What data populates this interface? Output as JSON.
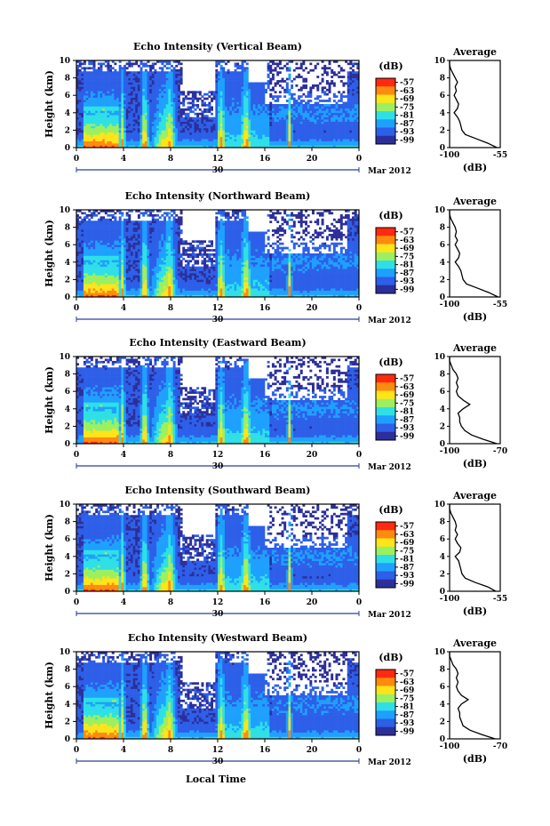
{
  "x_axis_label": "Local Time",
  "chart_data": [
    {
      "type": "heatmap",
      "title": "Echo Intensity (Vertical Beam)",
      "ylabel": "Height (km)",
      "x_ticks": [
        "0",
        "4",
        "8",
        "12",
        "16",
        "20",
        "0"
      ],
      "date_day": "30",
      "date_month": "Mar 2012",
      "colorbar_unit": "(dB)",
      "colorbar_ticks": [
        "-57",
        "-63",
        "-69",
        "-75",
        "-81",
        "-87",
        "-93",
        "-99"
      ],
      "profile": {
        "title": "Average",
        "xlabel": "(dB)",
        "x_ticks": [
          "-100",
          "-55"
        ],
        "xlim": [
          -100,
          -55
        ],
        "y_ticks": [
          "0",
          "2",
          "4",
          "6",
          "8",
          "10"
        ],
        "ylim": [
          0,
          10
        ],
        "height_km": [
          0,
          0.5,
          1,
          1.5,
          2,
          2.5,
          3,
          3.5,
          4,
          4.5,
          5,
          5.5,
          6,
          6.5,
          7,
          7.5,
          8,
          8.5,
          9,
          9.5,
          10
        ],
        "values_db": [
          -58,
          -66,
          -76,
          -86,
          -89,
          -90,
          -91,
          -93,
          -96,
          -93,
          -92,
          -94,
          -96,
          -94,
          -95,
          -93,
          -95,
          -97,
          -99,
          -100,
          -100
        ]
      }
    },
    {
      "type": "heatmap",
      "title": "Echo Intensity (Northward Beam)",
      "ylabel": "Height (km)",
      "x_ticks": [
        "0",
        "4",
        "8",
        "12",
        "16",
        "20",
        "0"
      ],
      "date_day": "30",
      "date_month": "Mar 2012",
      "colorbar_unit": "(dB)",
      "colorbar_ticks": [
        "-57",
        "-63",
        "-69",
        "-75",
        "-81",
        "-87",
        "-93",
        "-99"
      ],
      "profile": {
        "title": "Average",
        "xlabel": "(dB)",
        "x_ticks": [
          "-100",
          "-55"
        ],
        "xlim": [
          -100,
          -55
        ],
        "y_ticks": [
          "0",
          "2",
          "4",
          "6",
          "8",
          "10"
        ],
        "ylim": [
          0,
          10
        ],
        "height_km": [
          0,
          0.5,
          1,
          1.5,
          2,
          2.5,
          3,
          3.5,
          4,
          4.5,
          5,
          5.5,
          6,
          6.5,
          7,
          7.5,
          8,
          8.5,
          9,
          9.5,
          10
        ],
        "values_db": [
          -57,
          -65,
          -75,
          -85,
          -88,
          -89,
          -90,
          -92,
          -95,
          -92,
          -91,
          -93,
          -95,
          -93,
          -95,
          -94,
          -95,
          -97,
          -99,
          -100,
          -100
        ]
      }
    },
    {
      "type": "heatmap",
      "title": "Echo Intensity (Eastward Beam)",
      "ylabel": "Height (km)",
      "x_ticks": [
        "0",
        "4",
        "8",
        "12",
        "16",
        "20",
        "0"
      ],
      "date_day": "30",
      "date_month": "Mar 2012",
      "colorbar_unit": "(dB)",
      "colorbar_ticks": [
        "-57",
        "-63",
        "-69",
        "-75",
        "-81",
        "-87",
        "-93",
        "-99"
      ],
      "profile": {
        "title": "Average",
        "xlabel": "(dB)",
        "x_ticks": [
          "-100",
          "-70"
        ],
        "xlim": [
          -100,
          -70
        ],
        "y_ticks": [
          "0",
          "2",
          "4",
          "6",
          "8",
          "10"
        ],
        "ylim": [
          0,
          10
        ],
        "height_km": [
          0,
          0.5,
          1,
          1.5,
          2,
          2.5,
          3,
          3.5,
          4,
          4.5,
          5,
          5.5,
          6,
          6.5,
          7,
          7.5,
          8,
          8.5,
          9,
          9.5,
          10
        ],
        "values_db": [
          -72,
          -80,
          -87,
          -91,
          -93,
          -94,
          -94,
          -95,
          -92,
          -88,
          -92,
          -95,
          -96,
          -95,
          -96,
          -95,
          -96,
          -98,
          -99,
          -100,
          -100
        ]
      }
    },
    {
      "type": "heatmap",
      "title": "Echo Intensity (Southward Beam)",
      "ylabel": "Height (km)",
      "x_ticks": [
        "0",
        "4",
        "8",
        "12",
        "16",
        "20",
        "0"
      ],
      "date_day": "30",
      "date_month": "Mar 2012",
      "colorbar_unit": "(dB)",
      "colorbar_ticks": [
        "-57",
        "-63",
        "-69",
        "-75",
        "-81",
        "-87",
        "-93",
        "-99"
      ],
      "profile": {
        "title": "Average",
        "xlabel": "(dB)",
        "x_ticks": [
          "-100",
          "-55"
        ],
        "xlim": [
          -100,
          -55
        ],
        "y_ticks": [
          "0",
          "2",
          "4",
          "6",
          "8",
          "10"
        ],
        "ylim": [
          0,
          10
        ],
        "height_km": [
          0,
          0.5,
          1,
          1.5,
          2,
          2.5,
          3,
          3.5,
          4,
          4.5,
          5,
          5.5,
          6,
          6.5,
          7,
          7.5,
          8,
          8.5,
          9,
          9.5,
          10
        ],
        "values_db": [
          -59,
          -66,
          -77,
          -86,
          -89,
          -90,
          -91,
          -92,
          -95,
          -91,
          -90,
          -93,
          -95,
          -93,
          -95,
          -94,
          -95,
          -97,
          -99,
          -100,
          -100
        ]
      }
    },
    {
      "type": "heatmap",
      "title": "Echo Intensity (Westward Beam)",
      "ylabel": "Height (km)",
      "x_ticks": [
        "0",
        "4",
        "8",
        "12",
        "16",
        "20",
        "0"
      ],
      "date_day": "30",
      "date_month": "Mar 2012",
      "colorbar_unit": "(dB)",
      "colorbar_ticks": [
        "-57",
        "-63",
        "-69",
        "-75",
        "-81",
        "-87",
        "-93",
        "-99"
      ],
      "profile": {
        "title": "Average",
        "xlabel": "(dB)",
        "x_ticks": [
          "-100",
          "-70"
        ],
        "xlim": [
          -100,
          -70
        ],
        "y_ticks": [
          "0",
          "2",
          "4",
          "6",
          "8",
          "10"
        ],
        "ylim": [
          0,
          10
        ],
        "height_km": [
          0,
          0.5,
          1,
          1.5,
          2,
          2.5,
          3,
          3.5,
          4,
          4.5,
          5,
          5.5,
          6,
          6.5,
          7,
          7.5,
          8,
          8.5,
          9,
          9.5,
          10
        ],
        "values_db": [
          -73,
          -81,
          -88,
          -92,
          -93,
          -94,
          -94,
          -95,
          -93,
          -89,
          -93,
          -95,
          -96,
          -95,
          -96,
          -95,
          -96,
          -98,
          -99,
          -100,
          -100
        ]
      }
    }
  ]
}
